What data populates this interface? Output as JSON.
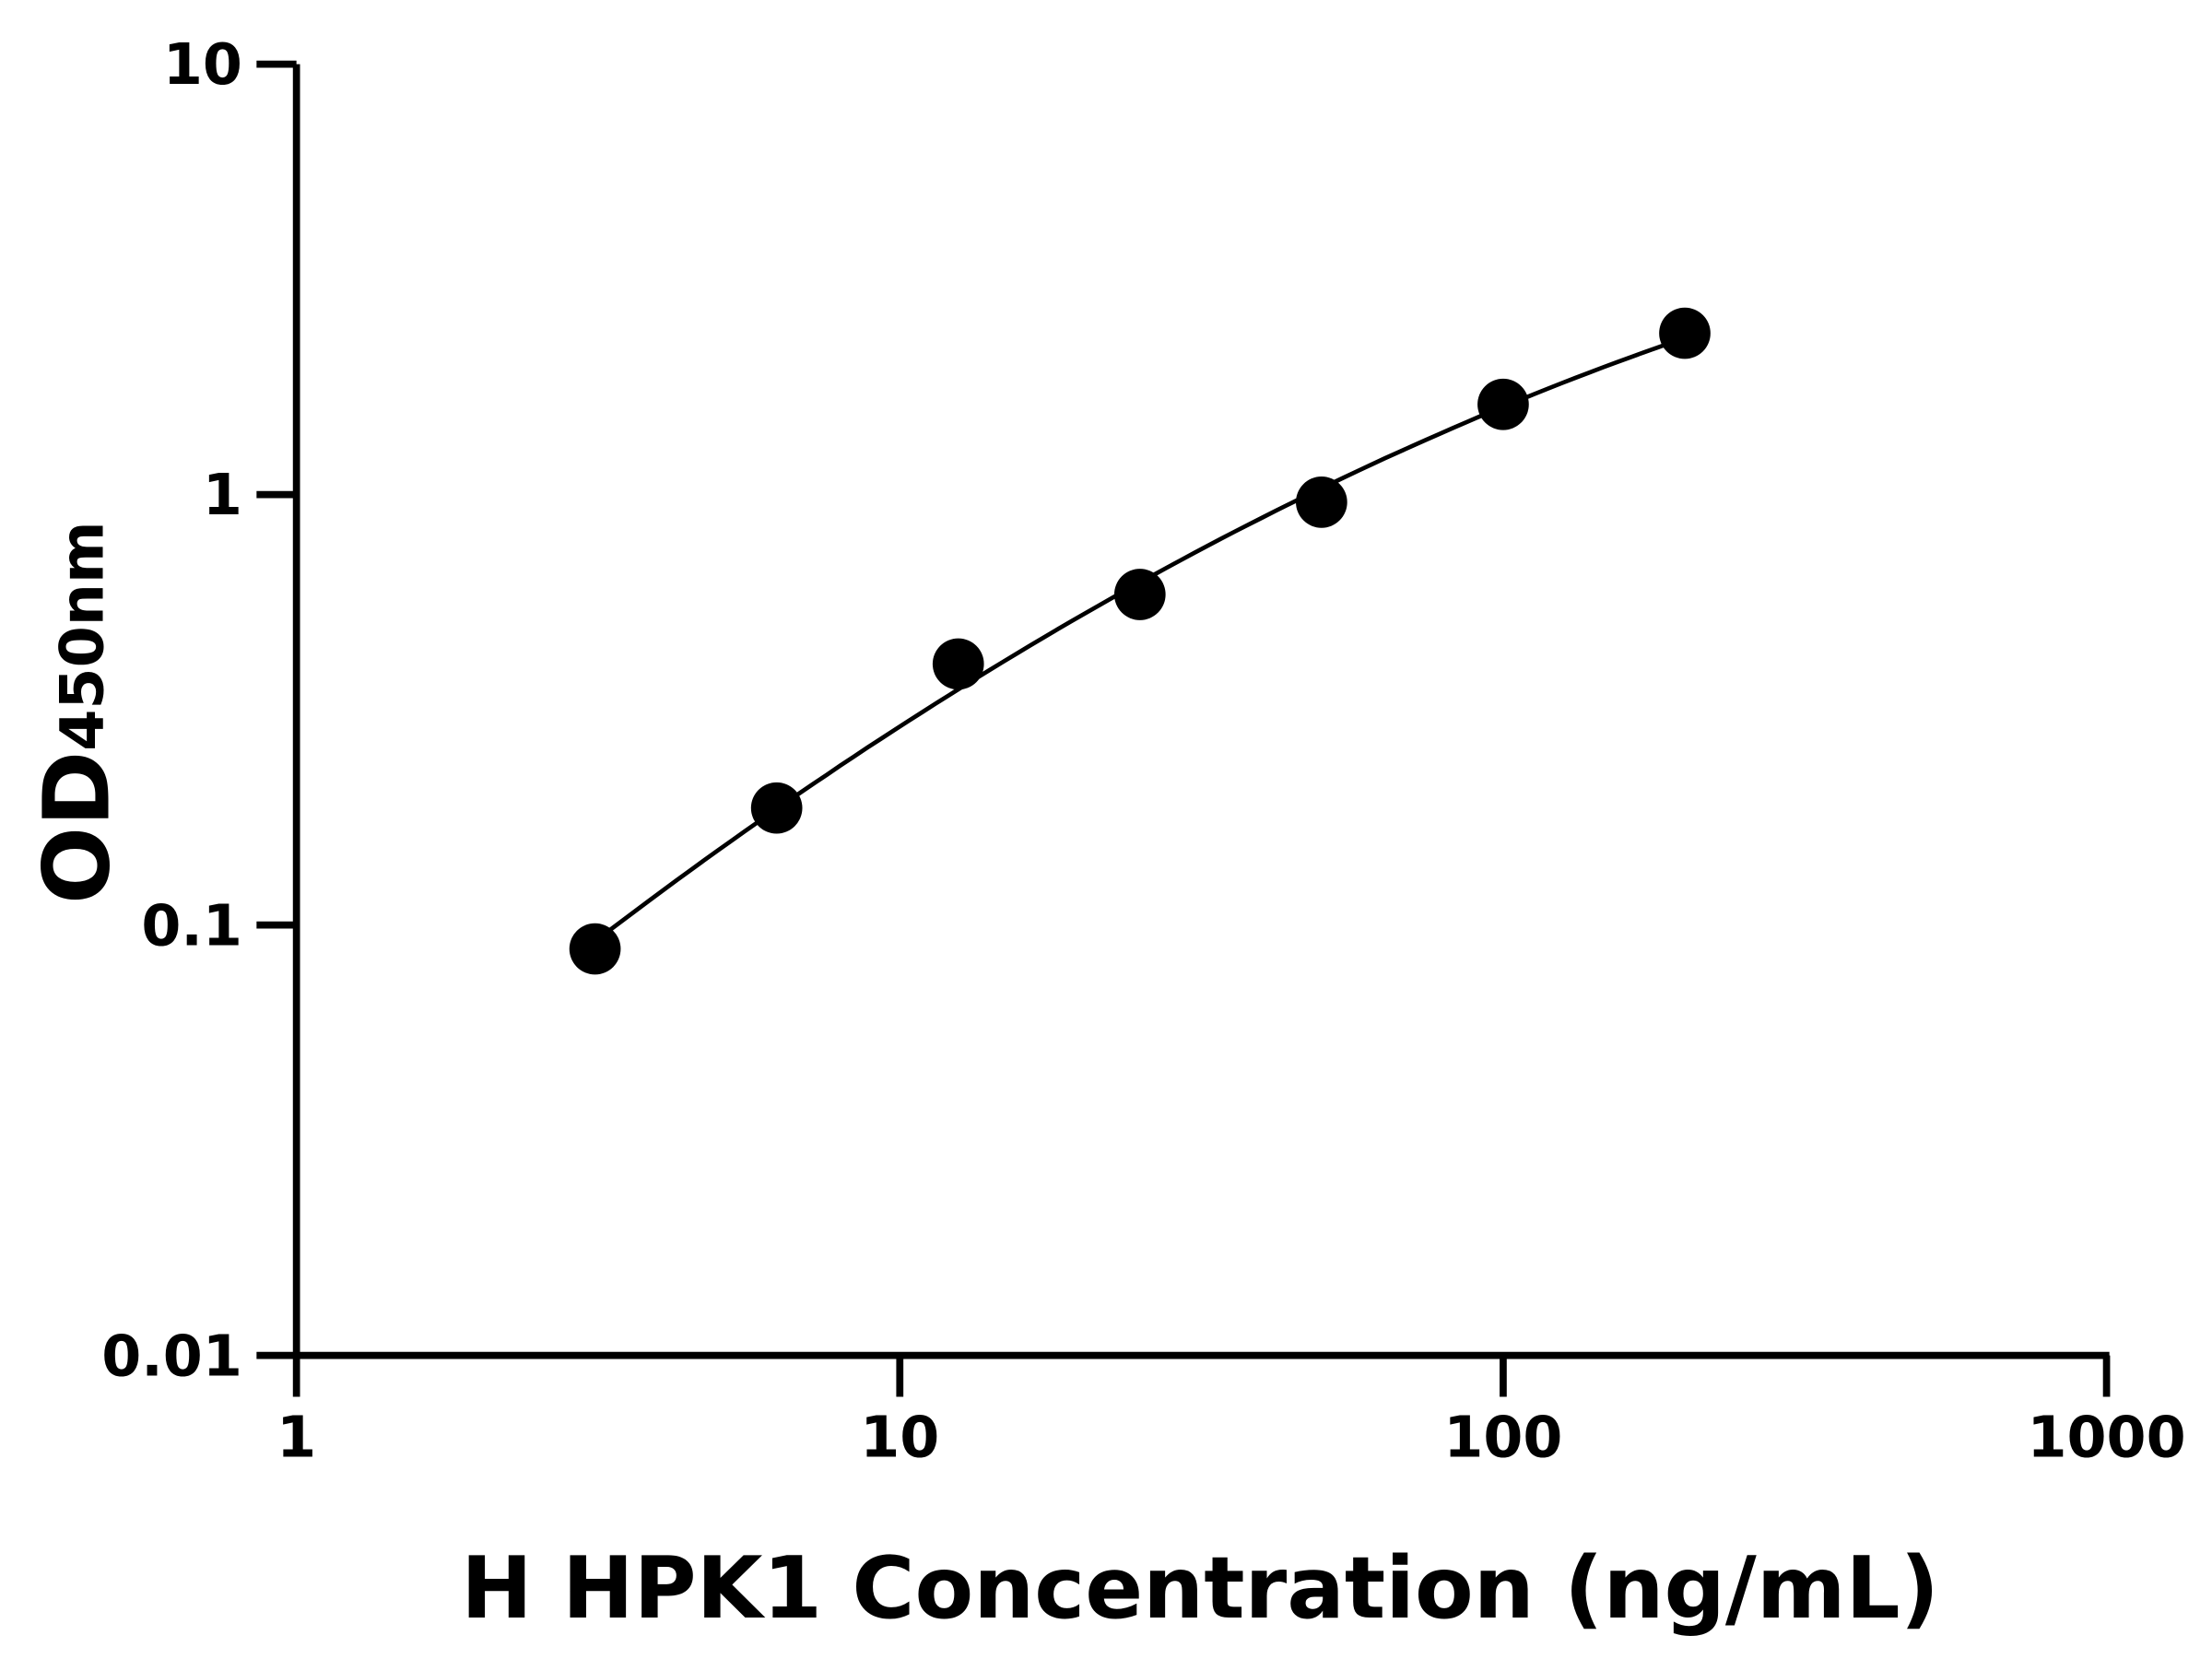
{
  "chart_data": {
    "type": "scatter",
    "title": "",
    "xlabel": "H HPK1 Concentration (ng/mL)",
    "ylabel_main": "OD",
    "ylabel_sub": "450nm",
    "x_scale": "log",
    "y_scale": "log",
    "xlim": [
      1,
      1000
    ],
    "ylim": [
      0.01,
      10
    ],
    "x_ticks": [
      "1",
      "10",
      "100",
      "1000"
    ],
    "y_ticks": [
      "0.01",
      "0.1",
      "1",
      "10"
    ],
    "grid": false,
    "legend": "none",
    "fit_curve": true,
    "point_color": "#000000",
    "series": [
      {
        "x": [
          3.125,
          6.25,
          12.5,
          25,
          50,
          100,
          200
        ],
        "y": [
          0.088,
          0.187,
          0.404,
          0.586,
          0.96,
          1.62,
          2.37
        ]
      }
    ]
  }
}
